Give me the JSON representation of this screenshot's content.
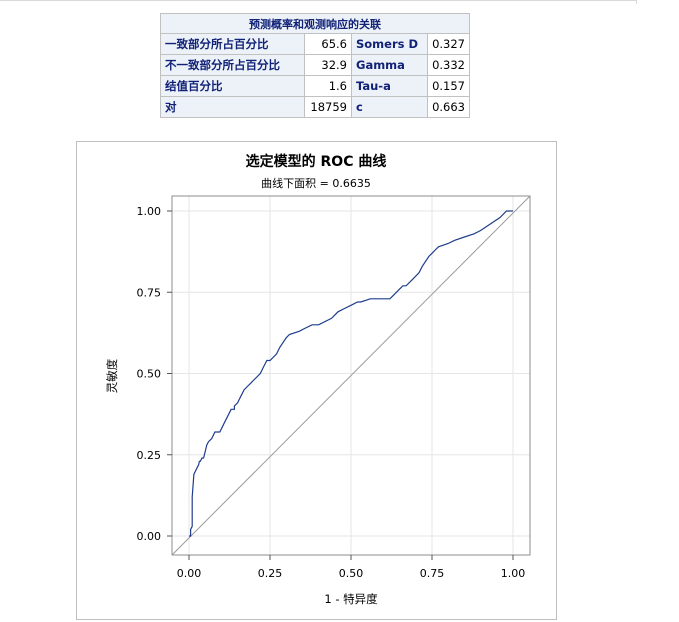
{
  "table": {
    "caption": "预测概率和观测响应的关联",
    "rows": [
      {
        "label": "一致部分所占百分比",
        "value": "65.6",
        "stat": "Somers D",
        "stat_value": "0.327"
      },
      {
        "label": "不一致部分所占百分比",
        "value": "32.9",
        "stat": "Gamma",
        "stat_value": "0.332"
      },
      {
        "label": "结值百分比",
        "value": "1.6",
        "stat": "Tau-a",
        "stat_value": "0.157"
      },
      {
        "label": "对",
        "value": "18759",
        "stat": "c",
        "stat_value": "0.663"
      }
    ]
  },
  "chart_data": {
    "type": "line",
    "title": "选定模型的 ROC 曲线",
    "subtitle": "曲线下面积 = 0.6635",
    "xlabel": "1 - 特异度",
    "ylabel": "灵敏度",
    "xlim": [
      0,
      1
    ],
    "ylim": [
      0,
      1
    ],
    "x_ticks": [
      "0.00",
      "0.25",
      "0.50",
      "0.75",
      "1.00"
    ],
    "y_ticks": [
      "0.00",
      "0.25",
      "0.50",
      "0.75",
      "1.00"
    ],
    "grid": true,
    "colors": {
      "roc": "#1f3d8c",
      "reference": "#9a9a9a"
    },
    "series": [
      {
        "x": [
          0.0,
          0.005,
          0.005,
          0.01,
          0.01,
          0.012,
          0.015,
          0.02,
          0.025,
          0.03,
          0.032,
          0.035,
          0.04,
          0.045,
          0.05,
          0.055,
          0.06,
          0.07,
          0.075,
          0.08,
          0.085,
          0.09,
          0.095,
          0.1,
          0.11,
          0.12,
          0.13,
          0.14,
          0.14,
          0.15,
          0.16,
          0.17,
          0.18,
          0.19,
          0.2,
          0.22,
          0.23,
          0.24,
          0.25,
          0.27,
          0.28,
          0.3,
          0.31,
          0.34,
          0.36,
          0.38,
          0.4,
          0.44,
          0.46,
          0.48,
          0.5,
          0.52,
          0.53,
          0.56,
          0.58,
          0.62,
          0.64,
          0.66,
          0.67,
          0.69,
          0.71,
          0.72,
          0.74,
          0.75,
          0.76,
          0.77,
          0.8,
          0.82,
          0.85,
          0.88,
          0.9,
          0.93,
          0.96,
          0.98,
          1.0
        ],
        "y": [
          0.0,
          0.0,
          0.02,
          0.03,
          0.12,
          0.15,
          0.19,
          0.2,
          0.21,
          0.22,
          0.23,
          0.23,
          0.24,
          0.24,
          0.26,
          0.28,
          0.29,
          0.3,
          0.31,
          0.32,
          0.32,
          0.32,
          0.32,
          0.33,
          0.35,
          0.37,
          0.39,
          0.39,
          0.4,
          0.41,
          0.43,
          0.45,
          0.46,
          0.47,
          0.48,
          0.5,
          0.52,
          0.54,
          0.54,
          0.56,
          0.58,
          0.61,
          0.62,
          0.63,
          0.64,
          0.65,
          0.65,
          0.67,
          0.69,
          0.7,
          0.71,
          0.72,
          0.72,
          0.73,
          0.73,
          0.73,
          0.75,
          0.77,
          0.77,
          0.79,
          0.81,
          0.83,
          0.86,
          0.87,
          0.88,
          0.89,
          0.9,
          0.91,
          0.92,
          0.93,
          0.94,
          0.96,
          0.98,
          1.0,
          1.0
        ]
      }
    ]
  }
}
